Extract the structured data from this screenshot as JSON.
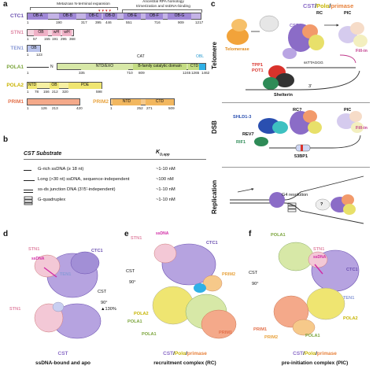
{
  "panels": {
    "a": "a",
    "b": "b",
    "c": "c",
    "d": "d",
    "e": "e",
    "f": "f"
  },
  "domain_header": {
    "left": "Metazoan N-terminal expansion",
    "right_line1": "Ancestral RPA homology",
    "right_line2": "trimerization and ssDNA-binding"
  },
  "proteins": {
    "ctc1": {
      "name": "CTC1",
      "domains": [
        "OB-A",
        "OB-B",
        "OB-C",
        "OB-D",
        "OB-E",
        "OB-F",
        "OB-G"
      ],
      "nums": [
        "1",
        "190",
        "317",
        "395",
        "446",
        "551",
        "716",
        "909",
        "1217"
      ]
    },
    "stn1": {
      "name": "STN1",
      "domains": [
        "OB",
        "wH",
        "wH"
      ],
      "nums": [
        "1",
        "57",
        "155",
        "191",
        "295",
        "368"
      ]
    },
    "ten1": {
      "name": "TEN1",
      "domains": [
        "OB"
      ],
      "nums": [
        "1",
        "123"
      ]
    },
    "pola1": {
      "name": "POLA1",
      "n_label": "N",
      "cat_label": "CAT",
      "obl_label": "OBL",
      "domains": [
        "NTD/EXO",
        "B-family catalytic domain",
        "CTD"
      ],
      "nums": [
        "1",
        "335",
        "710",
        "809",
        "1245",
        "1265",
        "1462"
      ]
    },
    "pola2": {
      "name": "POLA2",
      "domains": [
        "NTD",
        "OB",
        "PDE"
      ],
      "nums": [
        "1",
        "78",
        "156",
        "212",
        "320",
        "598"
      ]
    },
    "prim1": {
      "name": "PRIM1",
      "nums": [
        "1",
        "126",
        "213",
        "420"
      ]
    },
    "prim2": {
      "name": "PRIM2",
      "domains": [
        "NTD",
        "CTD"
      ],
      "nums": [
        "1",
        "252",
        "271",
        "509"
      ]
    }
  },
  "table": {
    "header_substrate": "CST Substrate",
    "header_k": "K",
    "header_k_sub": "D,app",
    "rows": [
      {
        "label": "G-rich ssDNA (≥ 18 nt)",
        "k": "~1-10 nM"
      },
      {
        "label": "Long (>30 nt) ssDNA, sequence-independent",
        "k": "~100 nM"
      },
      {
        "label": "ss-ds junction DNA (3'/5'-independent)",
        "k": "~1-10 nM"
      },
      {
        "label": "G-quadruplex",
        "k": "~1-10 nM"
      }
    ]
  },
  "panel_c": {
    "section_labels": [
      "Telomere",
      "DSB",
      "Replication"
    ],
    "telomerase": "Telomerase",
    "cst_label": "CST",
    "cst_title_parts": [
      "CST",
      "/",
      "Polα",
      "/",
      "primase"
    ],
    "rc": "RC",
    "pic": "PIC",
    "tpp1": "TPP1",
    "pot1": "POT1",
    "shelterin": "Shelterin",
    "seq": "ssTTAGGG",
    "fill_in": "Fill-in",
    "five_prime": "5'",
    "three_prime": "3'",
    "shld": "SHLD1-3",
    "rev7": "REV7",
    "rif1": "RIF1",
    "bp53": "53BP1",
    "rc_q": "RC?",
    "g4": "G4 resolution",
    "q": "?",
    "colors": {
      "cst": "#8b6cc7",
      "pola": "#e8e06a",
      "primase": "#f29a6b",
      "shelterin_red": "#d9322b",
      "telomerase": "#f2a33a"
    }
  },
  "panel_d": {
    "stn1n": "STN1",
    "stn1c": "STN1",
    "ctc1": "CTC1",
    "ssdna": "ssDNA",
    "ten1": "TEN1",
    "rot": "90°",
    "pct": "▲130%",
    "cst": "CST",
    "caption_title": "CST",
    "caption_sub": "ssDNA-bound and apo"
  },
  "panel_e": {
    "stn1": "STN1",
    "ssdna": "ssDNA",
    "ctc1": "CTC1",
    "prim2": "PRIM2",
    "pola2": "POLA2",
    "pola1ctd": "POLA1",
    "pola1cat": "POLA1",
    "prim1": "PRIM1",
    "cst": "CST",
    "rot": "90°",
    "caption_parts": [
      "CST",
      "/",
      "Polα",
      "/",
      "primase"
    ],
    "caption_sub": "recruitment complex (RC)"
  },
  "panel_f": {
    "pola1cat": "POLA1",
    "stn1": "STN1",
    "ssdna": "ssDNA",
    "ctc1": "CTC1",
    "ten1": "TEN1",
    "pola2": "POLA2",
    "prim1": "PRIM1",
    "prim2": "PRIM2",
    "pola1ctd": "POLA1",
    "cst": "CST",
    "rot": "90°",
    "caption_parts": [
      "CST",
      "/",
      "Polα",
      "/",
      "primase"
    ],
    "caption_sub": "pre-initiation complex (PIC)"
  }
}
